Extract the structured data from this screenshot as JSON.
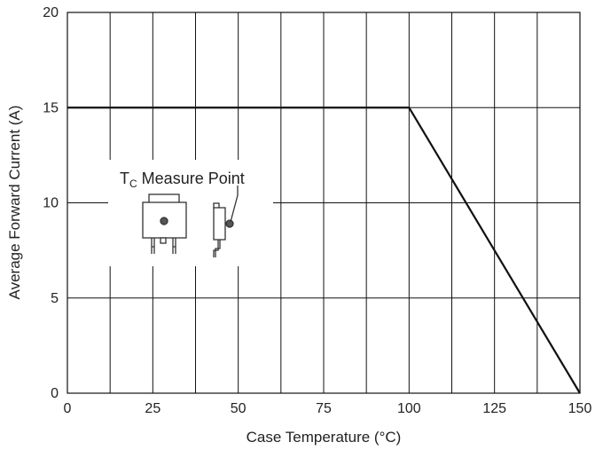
{
  "chart_data": {
    "type": "line",
    "title": "",
    "xlabel": "Case Temperature (°C)",
    "ylabel": "Average Forward Current (A)",
    "xlim": [
      0,
      150
    ],
    "ylim": [
      0,
      20
    ],
    "xticks": [
      0,
      25,
      50,
      75,
      100,
      125,
      150
    ],
    "yticks": [
      0,
      5,
      10,
      15,
      20
    ],
    "grid": true,
    "series": [
      {
        "x": [
          0,
          100,
          150
        ],
        "y": [
          15,
          15,
          0
        ]
      }
    ],
    "annotation": {
      "main": "T",
      "sub": "C",
      "rest": " Measure Point"
    },
    "colors": {
      "line": "#111111",
      "grid": "#111111",
      "text": "#222222",
      "package": "#333333",
      "dot": "#555555"
    }
  }
}
